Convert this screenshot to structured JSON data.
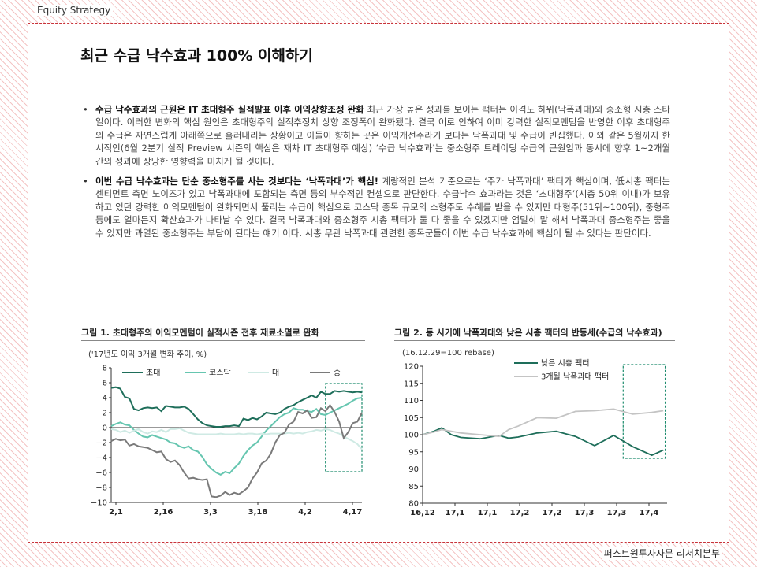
{
  "header_tag": "Equity Strategy",
  "title": "최근 수급 낙수효과 100% 이해하기",
  "bullets": [
    {
      "bold": "수급 낙수효과의 근원은 IT 초대형주 실적발표 이후 이익상향조정 완화",
      "text": " 최근 가장 높은 성과를 보이는 팩터는 이격도 하위(낙폭과대)와 중소형 시총 스타일이다. 이러한 변화의 핵심 원인은 초대형주의 실적추정치 상향 조정폭이 완화됐다. 결국 이로 인하여 이미 강력한 실적모멘텀을 반영한 이후 초대형주의 수급은 자연스럽게 아래쪽으로 흘러내리는 상황이고 이들이 향하는 곳은 이익개선주라기 보다는 낙폭과대 및 수급이 빈집했다. 이와 같은 5월까지 한시적인(6월 2분기 실적 Preview 시즌의 핵심은 재차 IT 초대형주 예상) ‘수급 낙수효과’는 중소형주 트레이딩 수급의 근원임과 동시에 향후 1~2개월 간의 성과에 상당한 영향력을 미치게 될 것이다."
    },
    {
      "bold": "이번 수급 낙수효과는 단순 중소형주를 사는 것보다는 ‘낙폭과대’가 핵심!",
      "text": " 계량적인 분석 기준으로는 ‘주가 낙폭과대’ 팩터가 핵심이며, 低시총 팩터는 센티먼트 측면 노이즈가 있고 낙폭과대에 포함되는 측면 등의 부수적인 컨셉으로 판단한다. 수급낙수 효과라는 것은 ‘초대형주’(시총 50위 이내)가 보유하고 있던 강력한 이익모멘텀이 완화되면서 풀리는 수급이 핵심으로 코스닥 종목 규모의 소형주도 수혜를 받을 수 있지만 대형주(51위~100위), 중형주 등에도 얼마든지 확산효과가 나타날 수 있다. 결국 낙폭과대와 중소형주 시총 팩터가 둘 다 좋을 수 있겠지만 엄밀히 말 해서 낙폭과대 중소형주는 좋을 수 있지만 과열된 중소형주는 부담이 된다는 얘기 이다. 시총 무관 낙폭과대 관련한 종목군들이 이번 수급 낙수효과에 핵심이 될 수 있다는 판단이다."
    }
  ],
  "figure1": {
    "title": "그림 1. 초대형주의 이익모멘텀이 실적시즌 전후 재료소멸로 완화",
    "subtitle": "('17년도 이익 3개월 변화 추이, %)"
  },
  "figure2": {
    "title": "그림 2. 동 시기에 낙폭과대와 낮은 시총 팩터의 반등세(수급의 낙수효과)",
    "subtitle": "(16.12.29=100 rebase)"
  },
  "footer": "퍼스트원투자자문 리서치본부",
  "chart_data": [
    {
      "type": "line",
      "ylim": [
        -10,
        8
      ],
      "yticks": [
        "8",
        "6",
        "4",
        "2",
        "0",
        "−2",
        "−4",
        "−6",
        "−8",
        "−10"
      ],
      "xticks": [
        "2,1",
        "2,16",
        "3,3",
        "3,18",
        "4,2",
        "4,17"
      ],
      "highlight_x": [
        47,
        55
      ],
      "colors": [
        "#1e6e5a",
        "#66c6b0",
        "#cfeae4",
        "#7a7a7a"
      ],
      "series": [
        {
          "name": "초대",
          "values": [
            5.3,
            5.4,
            5.2,
            4.1,
            3.9,
            2.5,
            2.3,
            2.6,
            2.7,
            2.6,
            2.7,
            2.2,
            2.9,
            2.8,
            2.7,
            2.7,
            2.8,
            2.5,
            1.8,
            1.1,
            0.6,
            0.3,
            0.2,
            0.1,
            0.1,
            0.2,
            0.2,
            0.3,
            0.2,
            1.2,
            1.0,
            1.3,
            1.1,
            1.5,
            2.0,
            1.9,
            1.8,
            2.0,
            2.5,
            2.8,
            3.0,
            3.4,
            3.7,
            4.0,
            4.3,
            4.0,
            4.8,
            4.5,
            4.5,
            4.9,
            4.8,
            4.9,
            4.8,
            4.7,
            4.8,
            4.7
          ]
        },
        {
          "name": "코스닥",
          "values": [
            0.2,
            0.5,
            0.7,
            0.4,
            0.3,
            -0.3,
            -0.8,
            -1.2,
            -1.3,
            -1.0,
            -1.2,
            -1.4,
            -1.6,
            -2.0,
            -2.1,
            -2.5,
            -2.7,
            -2.5,
            -3.0,
            -3.2,
            -3.9,
            -4.9,
            -5.5,
            -6.0,
            -6.3,
            -5.9,
            -6.1,
            -5.4,
            -4.8,
            -3.8,
            -3.0,
            -2.4,
            -2.0,
            -1.2,
            -0.4,
            0.2,
            0.8,
            1.4,
            1.8,
            2.0,
            2.6,
            2.4,
            2.4,
            2.2,
            2.1,
            2.5,
            1.8,
            1.7,
            2.0,
            2.3,
            2.6,
            2.9,
            3.2,
            3.6,
            3.9,
            4.0
          ]
        },
        {
          "name": "대",
          "values": [
            -0.2,
            -0.3,
            -0.6,
            -0.4,
            -0.7,
            -0.4,
            -0.2,
            -0.6,
            -0.8,
            -0.5,
            -0.6,
            -0.3,
            -0.6,
            -0.2,
            -0.2,
            -0.1,
            -0.4,
            -0.7,
            -0.8,
            -0.9,
            -0.9,
            -0.9,
            -0.9,
            -0.9,
            -0.8,
            -0.9,
            -0.9,
            -0.9,
            -0.8,
            -0.9,
            -0.8,
            -0.8,
            -0.9,
            -0.8,
            -0.9,
            -0.8,
            -0.8,
            -0.8,
            -0.8,
            -0.7,
            -0.8,
            -0.7,
            -0.8,
            -0.6,
            -0.5,
            -0.3,
            -0.4,
            -0.2,
            -0.3,
            -0.6,
            -0.8,
            -1.2,
            -1.5,
            -1.8,
            -2.2,
            -2.9
          ]
        },
        {
          "name": "중",
          "values": [
            -1.8,
            -1.5,
            -1.7,
            -1.6,
            -2.4,
            -2.2,
            -2.5,
            -2.6,
            -2.7,
            -3.0,
            -3.3,
            -3.2,
            -4.2,
            -4.6,
            -4.4,
            -5.0,
            -6.0,
            -6.8,
            -6.7,
            -6.9,
            -7.0,
            -6.9,
            -9.2,
            -9.3,
            -9.1,
            -8.6,
            -9.0,
            -8.7,
            -8.9,
            -8.5,
            -8.0,
            -6.8,
            -6.0,
            -4.8,
            -4.4,
            -3.5,
            -2.0,
            -1.0,
            -0.7,
            0.4,
            0.8,
            2.1,
            1.9,
            2.3,
            1.3,
            1.4,
            2.6,
            2.2,
            3.0,
            2.1,
            0.8,
            -1.4,
            -0.6,
            0.6,
            0.8,
            2.0
          ]
        }
      ]
    },
    {
      "type": "line",
      "ylim": [
        80,
        120
      ],
      "yticks": [
        "120",
        "115",
        "110",
        "105",
        "100",
        "95",
        "90",
        "85",
        "80"
      ],
      "xticks": [
        "16,12",
        "17,1",
        "17,1",
        "17,2",
        "17,2",
        "17,3",
        "17,3",
        "17,4"
      ],
      "highlight_x": [
        10.5,
        12.7
      ],
      "colors": [
        "#1e6e5a",
        "#c4c4c4"
      ],
      "series": [
        {
          "name": "낮은 시총 팩터",
          "x": [
            0,
            0.6,
            1,
            1.5,
            2,
            3,
            4,
            4.5,
            5,
            6,
            7,
            8,
            9,
            10,
            11,
            12,
            12.6
          ],
          "values": [
            100,
            101,
            102,
            100,
            99.2,
            98.8,
            99.8,
            99.0,
            99.3,
            100.5,
            101.0,
            99.5,
            96.8,
            99.8,
            96.5,
            94.0,
            95.5
          ]
        },
        {
          "name": "3개월 낙폭과대 팩터",
          "x": [
            0,
            0.6,
            1,
            1.5,
            2,
            3,
            4,
            4.5,
            5,
            6,
            7,
            8,
            9,
            10,
            11,
            12,
            12.6
          ],
          "values": [
            100,
            100.8,
            101.5,
            101.0,
            100.5,
            100.0,
            99.5,
            101.5,
            102.5,
            105.0,
            104.8,
            106.8,
            107.0,
            107.5,
            106.0,
            106.5,
            107.0
          ]
        }
      ]
    }
  ]
}
